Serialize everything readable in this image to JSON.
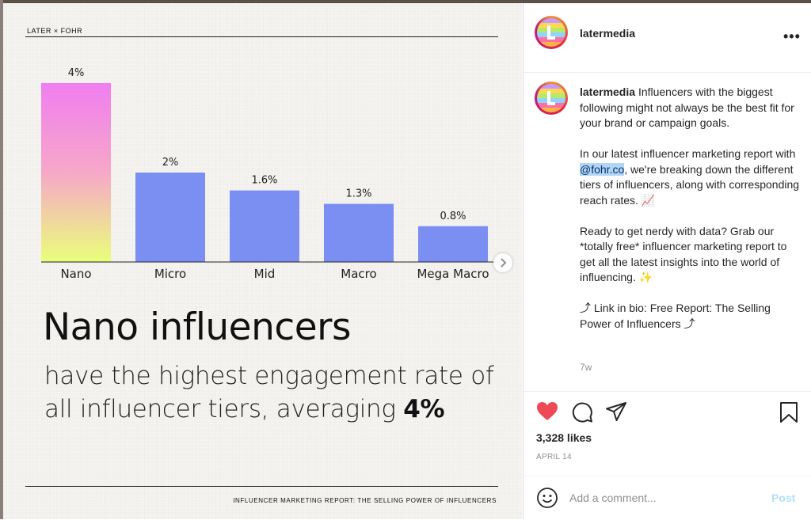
{
  "post_image": {
    "brand_label": "LATER × FOHR",
    "headline": "Nano influencers",
    "subline_text": "have the highest engagement rate of all influencer tiers, averaging",
    "subline_emphasis": "4%",
    "footer": "INFLUENCER MARKETING REPORT: THE SELLING POWER OF INFLUENCERS"
  },
  "chart_data": {
    "type": "bar",
    "categories": [
      "Nano",
      "Micro",
      "Mid",
      "Macro",
      "Mega Macro"
    ],
    "values": [
      4,
      2,
      1.6,
      1.3,
      0.8
    ],
    "value_labels": [
      "4%",
      "2%",
      "1.6%",
      "1.3%",
      "0.8%"
    ],
    "ylim": [
      0,
      4
    ],
    "title": "",
    "xlabel": "",
    "ylabel": "",
    "grid": false,
    "colors": {
      "bar": "#7b8ff2",
      "highlight_top": "#f07ef0",
      "highlight_bottom": "#eaff7a"
    }
  },
  "post": {
    "username": "latermedia",
    "caption_intro": "Influencers with the biggest following might not always be the best fit for your brand or campaign goals.",
    "caption_p2_before": "In our latest influencer marketing report with ",
    "caption_mention": "@fohr.co",
    "caption_p2_after": ", we're breaking down the different tiers of influencers, along with corresponding reach rates. 📈",
    "caption_p3": "Ready to get nerdy with data? Grab our *totally free* influencer marketing report to get all the latest insights into the world of influencing. ✨",
    "caption_p4": "⤴ Link in bio: Free Report: The Selling Power of Influencers ⤴",
    "time_ago": "7w",
    "likes": "3,328 likes",
    "date": "APRIL 14",
    "comment_placeholder": "Add a comment...",
    "post_button": "Post",
    "more_options": "•••"
  },
  "icons": [
    "heart-icon",
    "comment-icon",
    "share-icon",
    "bookmark-icon",
    "emoji-icon",
    "chevron-right-icon"
  ],
  "colors": {
    "liked_heart": "#ed4956",
    "post_button_disabled": "#b2dffc",
    "mention_highlight": "#b3d4f5"
  }
}
